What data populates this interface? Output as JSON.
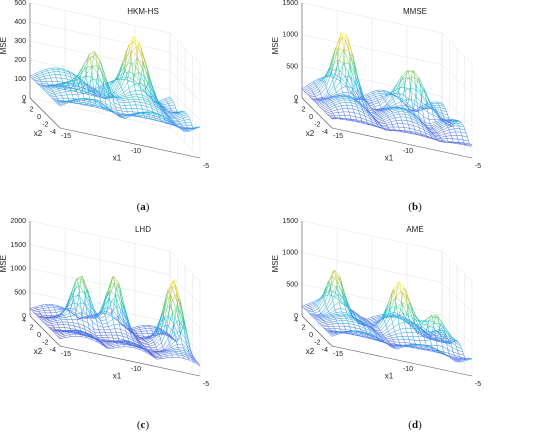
{
  "chart_data": [
    {
      "type": "surface",
      "title": "HKM-HS",
      "xlabel": "x1",
      "ylabel": "x2",
      "zlabel": "MSE",
      "xlim": [
        -15,
        -5
      ],
      "ylim": [
        -4,
        4
      ],
      "zlim": [
        0,
        500
      ],
      "xticks": [
        -15,
        -10,
        -5
      ],
      "yticks": [
        4,
        2,
        0,
        -2,
        -4
      ],
      "zticks": [
        0,
        100,
        200,
        300,
        400,
        500
      ],
      "peak_mse": 470,
      "caption": "(a)"
    },
    {
      "type": "surface",
      "title": "MMSE",
      "xlabel": "x1",
      "ylabel": "x2",
      "zlabel": "MSE",
      "xlim": [
        -15,
        -5
      ],
      "ylim": [
        -4,
        4
      ],
      "zlim": [
        0,
        1500
      ],
      "xticks": [
        -15,
        -10,
        -5
      ],
      "yticks": [
        4,
        2,
        0,
        -2,
        -4
      ],
      "zticks": [
        0,
        500,
        1000,
        1500
      ],
      "peak_mse": 1250,
      "caption": "(b)"
    },
    {
      "type": "surface",
      "title": "LHD",
      "xlabel": "x1",
      "ylabel": "x2",
      "zlabel": "MSE",
      "xlim": [
        -15,
        -5
      ],
      "ylim": [
        -4,
        4
      ],
      "zlim": [
        0,
        2000
      ],
      "xticks": [
        -15,
        -10,
        -5
      ],
      "yticks": [
        4,
        2,
        0,
        -2,
        -4
      ],
      "zticks": [
        0,
        500,
        1000,
        1500,
        2000
      ],
      "peak_mse": 1650,
      "caption": "(c)"
    },
    {
      "type": "surface",
      "title": "AME",
      "xlabel": "x1",
      "ylabel": "x2",
      "zlabel": "MSE",
      "xlim": [
        -15,
        -5
      ],
      "ylim": [
        -4,
        4
      ],
      "zlim": [
        0,
        1500
      ],
      "xticks": [
        -15,
        -10,
        -5
      ],
      "yticks": [
        4,
        2,
        0,
        -2,
        -4
      ],
      "zticks": [
        0,
        500,
        1000,
        1500
      ],
      "peak_mse": 1000,
      "caption": "(d)"
    }
  ],
  "colormap": [
    "#3e26a8",
    "#4971f2",
    "#2ba8e7",
    "#16c1b4",
    "#6cc95a",
    "#d8ba2f",
    "#f9fb0e"
  ]
}
